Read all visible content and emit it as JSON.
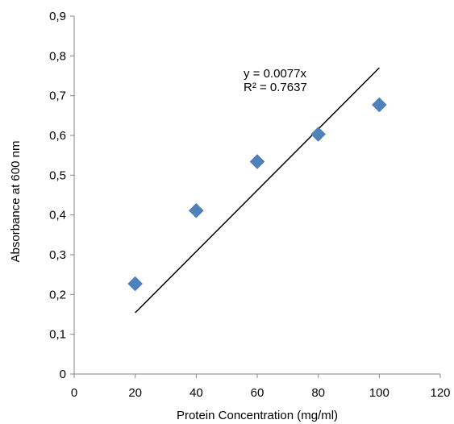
{
  "chart_data": {
    "type": "scatter",
    "title": "",
    "xlabel": "Protein Concentration (mg/ml)",
    "ylabel": "Absorbance at  600 nm",
    "xlim": [
      0,
      120
    ],
    "ylim": [
      0,
      0.9
    ],
    "x_ticks": [
      0,
      20,
      40,
      60,
      80,
      100,
      120
    ],
    "x_tick_labels": [
      "0",
      "20",
      "40",
      "60",
      "80",
      "100",
      "120"
    ],
    "y_ticks": [
      0,
      0.1,
      0.2,
      0.3,
      0.4,
      0.5,
      0.6,
      0.7,
      0.8,
      0.9
    ],
    "y_tick_labels": [
      "0",
      "0,1",
      "0,2",
      "0,3",
      "0,4",
      "0,5",
      "0,6",
      "0,7",
      "0,8",
      "0,9"
    ],
    "grid": false,
    "legend": "none",
    "series": [
      {
        "marker": "diamond",
        "color": "#4F81BD",
        "x": [
          20,
          40,
          60,
          80,
          100
        ],
        "y": [
          0.227,
          0.411,
          0.534,
          0.603,
          0.677
        ]
      }
    ],
    "trendline": {
      "type": "linear",
      "slope": 0.0077,
      "intercept": 0,
      "x_range": [
        20,
        100
      ],
      "color": "#000000"
    },
    "annotations": [
      "y = 0.0077x",
      "R² = 0.7637"
    ]
  }
}
